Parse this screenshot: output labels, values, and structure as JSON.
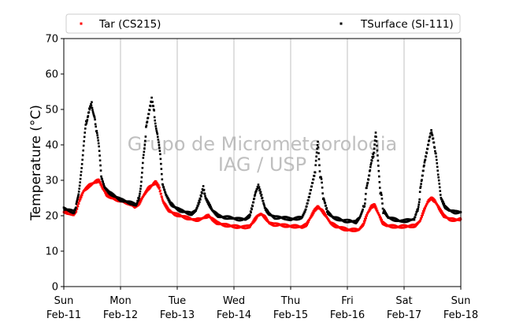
{
  "chart_data": {
    "type": "scatter",
    "title": "",
    "ylabel": "Temperature (°C)",
    "xlabel": "",
    "ylim": [
      0,
      70
    ],
    "y_ticks": [
      0,
      10,
      20,
      30,
      40,
      50,
      60,
      70
    ],
    "x_range_days": [
      0,
      7
    ],
    "x_ticks": [
      {
        "day": 0,
        "weekday": "Sun",
        "date": "Feb-11"
      },
      {
        "day": 1,
        "weekday": "Mon",
        "date": "Feb-12"
      },
      {
        "day": 2,
        "weekday": "Tue",
        "date": "Feb-13"
      },
      {
        "day": 3,
        "weekday": "Wed",
        "date": "Feb-14"
      },
      {
        "day": 4,
        "weekday": "Thu",
        "date": "Feb-15"
      },
      {
        "day": 5,
        "weekday": "Fri",
        "date": "Feb-16"
      },
      {
        "day": 6,
        "weekday": "Sat",
        "date": "Feb-17"
      },
      {
        "day": 7,
        "weekday": "Sun",
        "date": "Feb-18"
      }
    ],
    "grid": "vertical",
    "legend_placement": "top",
    "watermark": [
      "Grupo de Micrometeorologia",
      "IAG / USP"
    ],
    "series": [
      {
        "name": "Tar (CS215)",
        "color": "#ff0000",
        "points": [
          [
            0.0,
            21.0
          ],
          [
            0.1,
            20.8
          ],
          [
            0.18,
            20.3
          ],
          [
            0.22,
            21.5
          ],
          [
            0.28,
            24.5
          ],
          [
            0.35,
            27.0
          ],
          [
            0.45,
            28.5
          ],
          [
            0.55,
            29.5
          ],
          [
            0.62,
            30.0
          ],
          [
            0.68,
            28.0
          ],
          [
            0.75,
            26.0
          ],
          [
            0.85,
            25.0
          ],
          [
            0.95,
            24.5
          ],
          [
            1.05,
            24.0
          ],
          [
            1.15,
            23.5
          ],
          [
            1.25,
            22.5
          ],
          [
            1.33,
            23.5
          ],
          [
            1.4,
            25.5
          ],
          [
            1.48,
            27.5
          ],
          [
            1.55,
            28.5
          ],
          [
            1.62,
            29.5
          ],
          [
            1.68,
            28.0
          ],
          [
            1.75,
            24.0
          ],
          [
            1.85,
            21.5
          ],
          [
            1.95,
            20.5
          ],
          [
            2.05,
            20.0
          ],
          [
            2.15,
            19.5
          ],
          [
            2.25,
            19.0
          ],
          [
            2.33,
            18.8
          ],
          [
            2.4,
            19.0
          ],
          [
            2.48,
            19.5
          ],
          [
            2.55,
            20.0
          ],
          [
            2.62,
            19.0
          ],
          [
            2.7,
            18.0
          ],
          [
            2.8,
            17.5
          ],
          [
            2.9,
            17.2
          ],
          [
            3.0,
            17.0
          ],
          [
            3.1,
            16.8
          ],
          [
            3.2,
            16.8
          ],
          [
            3.28,
            17.0
          ],
          [
            3.35,
            18.5
          ],
          [
            3.42,
            20.0
          ],
          [
            3.48,
            20.5
          ],
          [
            3.55,
            19.5
          ],
          [
            3.62,
            18.0
          ],
          [
            3.7,
            17.5
          ],
          [
            3.8,
            17.5
          ],
          [
            3.9,
            17.2
          ],
          [
            4.0,
            17.0
          ],
          [
            4.1,
            17.0
          ],
          [
            4.2,
            16.8
          ],
          [
            4.28,
            17.5
          ],
          [
            4.35,
            19.5
          ],
          [
            4.42,
            21.5
          ],
          [
            4.48,
            22.5
          ],
          [
            4.55,
            21.5
          ],
          [
            4.62,
            20.0
          ],
          [
            4.7,
            18.0
          ],
          [
            4.8,
            17.0
          ],
          [
            4.9,
            16.5
          ],
          [
            5.0,
            16.0
          ],
          [
            5.1,
            16.0
          ],
          [
            5.2,
            16.0
          ],
          [
            5.28,
            17.5
          ],
          [
            5.35,
            20.5
          ],
          [
            5.42,
            22.5
          ],
          [
            5.48,
            23.0
          ],
          [
            5.55,
            20.5
          ],
          [
            5.62,
            18.0
          ],
          [
            5.7,
            17.2
          ],
          [
            5.8,
            17.0
          ],
          [
            5.9,
            16.8
          ],
          [
            6.0,
            17.0
          ],
          [
            6.1,
            17.0
          ],
          [
            6.2,
            17.2
          ],
          [
            6.28,
            18.5
          ],
          [
            6.35,
            21.5
          ],
          [
            6.42,
            24.0
          ],
          [
            6.48,
            25.0
          ],
          [
            6.55,
            24.0
          ],
          [
            6.62,
            22.0
          ],
          [
            6.7,
            20.0
          ],
          [
            6.8,
            19.0
          ],
          [
            6.9,
            18.8
          ],
          [
            7.0,
            19.0
          ]
        ]
      },
      {
        "name": "TSurface (SI-111)",
        "color": "#000000",
        "points": [
          [
            0.0,
            22.0
          ],
          [
            0.1,
            21.5
          ],
          [
            0.18,
            21.0
          ],
          [
            0.22,
            22.5
          ],
          [
            0.26,
            27.0
          ],
          [
            0.3,
            33.0
          ],
          [
            0.35,
            40.0
          ],
          [
            0.4,
            46.0
          ],
          [
            0.45,
            50.0
          ],
          [
            0.5,
            52.0
          ],
          [
            0.55,
            47.0
          ],
          [
            0.58,
            43.0
          ],
          [
            0.62,
            38.0
          ],
          [
            0.66,
            31.0
          ],
          [
            0.72,
            28.0
          ],
          [
            0.8,
            26.5
          ],
          [
            0.9,
            25.5
          ],
          [
            1.0,
            24.5
          ],
          [
            1.1,
            24.0
          ],
          [
            1.2,
            23.5
          ],
          [
            1.28,
            23.0
          ],
          [
            1.32,
            25.0
          ],
          [
            1.36,
            30.0
          ],
          [
            1.4,
            37.0
          ],
          [
            1.45,
            45.0
          ],
          [
            1.5,
            49.0
          ],
          [
            1.55,
            53.0
          ],
          [
            1.6,
            49.0
          ],
          [
            1.65,
            44.0
          ],
          [
            1.7,
            36.0
          ],
          [
            1.74,
            29.0
          ],
          [
            1.8,
            26.0
          ],
          [
            1.88,
            23.5
          ],
          [
            1.95,
            22.5
          ],
          [
            2.05,
            21.5
          ],
          [
            2.15,
            21.0
          ],
          [
            2.25,
            20.5
          ],
          [
            2.33,
            21.5
          ],
          [
            2.4,
            24.5
          ],
          [
            2.46,
            28.0
          ],
          [
            2.5,
            25.0
          ],
          [
            2.55,
            23.5
          ],
          [
            2.62,
            21.5
          ],
          [
            2.72,
            20.0
          ],
          [
            2.82,
            19.5
          ],
          [
            2.92,
            19.5
          ],
          [
            3.0,
            19.2
          ],
          [
            3.1,
            19.0
          ],
          [
            3.2,
            19.0
          ],
          [
            3.28,
            20.0
          ],
          [
            3.33,
            23.0
          ],
          [
            3.38,
            26.5
          ],
          [
            3.43,
            28.5
          ],
          [
            3.48,
            26.0
          ],
          [
            3.55,
            22.0
          ],
          [
            3.62,
            20.5
          ],
          [
            3.72,
            19.5
          ],
          [
            3.82,
            19.5
          ],
          [
            3.92,
            19.3
          ],
          [
            4.0,
            19.0
          ],
          [
            4.1,
            19.2
          ],
          [
            4.2,
            19.5
          ],
          [
            4.26,
            21.5
          ],
          [
            4.32,
            25.0
          ],
          [
            4.38,
            29.0
          ],
          [
            4.44,
            33.0
          ],
          [
            4.48,
            39.5
          ],
          [
            4.52,
            31.0
          ],
          [
            4.58,
            25.0
          ],
          [
            4.65,
            21.0
          ],
          [
            4.75,
            19.5
          ],
          [
            4.85,
            19.0
          ],
          [
            4.95,
            18.5
          ],
          [
            5.05,
            18.5
          ],
          [
            5.15,
            18.2
          ],
          [
            5.22,
            19.5
          ],
          [
            5.28,
            22.0
          ],
          [
            5.34,
            28.0
          ],
          [
            5.38,
            31.0
          ],
          [
            5.42,
            35.0
          ],
          [
            5.46,
            37.5
          ],
          [
            5.5,
            42.5
          ],
          [
            5.54,
            34.0
          ],
          [
            5.58,
            26.0
          ],
          [
            5.64,
            21.5
          ],
          [
            5.72,
            19.5
          ],
          [
            5.82,
            19.0
          ],
          [
            5.92,
            18.5
          ],
          [
            6.0,
            18.5
          ],
          [
            6.1,
            18.8
          ],
          [
            6.18,
            19.0
          ],
          [
            6.24,
            22.0
          ],
          [
            6.28,
            27.0
          ],
          [
            6.32,
            31.0
          ],
          [
            6.36,
            35.0
          ],
          [
            6.4,
            38.0
          ],
          [
            6.45,
            42.0
          ],
          [
            6.48,
            44.0
          ],
          [
            6.52,
            41.0
          ],
          [
            6.56,
            37.0
          ],
          [
            6.6,
            30.0
          ],
          [
            6.65,
            25.0
          ],
          [
            6.72,
            22.5
          ],
          [
            6.8,
            21.5
          ],
          [
            6.9,
            21.0
          ],
          [
            7.0,
            21.0
          ]
        ]
      }
    ]
  }
}
